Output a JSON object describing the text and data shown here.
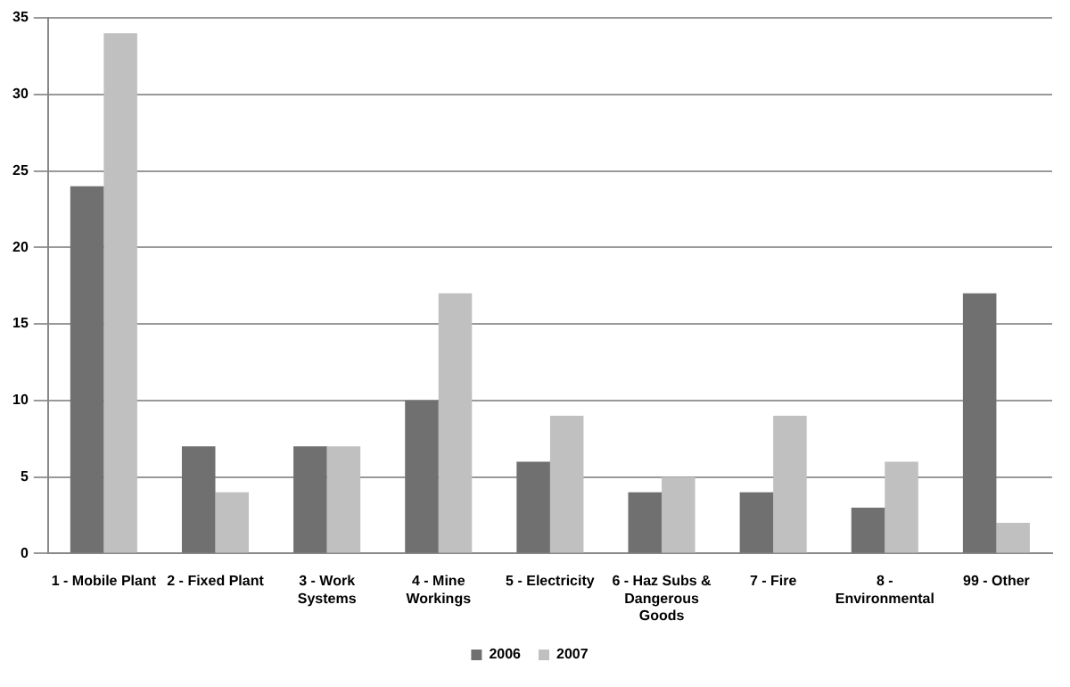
{
  "chart_data": {
    "type": "bar",
    "categories": [
      "1 - Mobile Plant",
      "2 - Fixed Plant",
      "3 - Work Systems",
      "4 - Mine Workings",
      "5 - Electricity",
      "6 - Haz Subs & Dangerous Goods",
      "7 - Fire",
      "8 - Environmental",
      "99 - Other"
    ],
    "series": [
      {
        "name": "2006",
        "color": "#707070",
        "values": [
          24,
          7,
          7,
          10,
          6,
          4,
          4,
          3,
          17
        ]
      },
      {
        "name": "2007",
        "color": "#c0c0c0",
        "values": [
          34,
          4,
          7,
          17,
          9,
          5,
          9,
          6,
          2
        ]
      }
    ],
    "ylim": [
      0,
      35
    ],
    "yticks": [
      0,
      5,
      10,
      15,
      20,
      25,
      30,
      35
    ],
    "grid": "y",
    "legend": "bottom"
  }
}
